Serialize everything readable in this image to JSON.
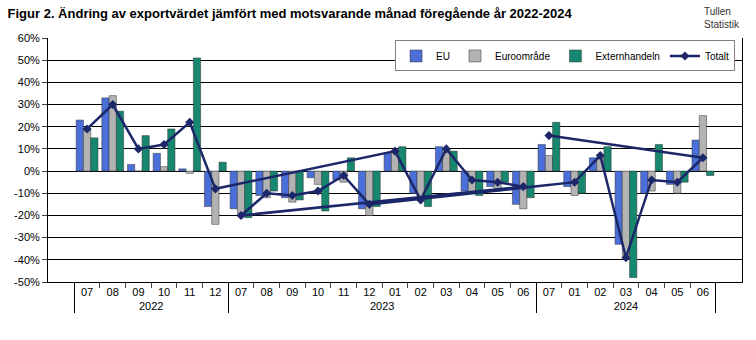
{
  "chart_data": {
    "type": "bar",
    "title": "Figur 2. Ändring av exportvärdet jämfört med motsvarande månad föregående år 2022-2024",
    "annotations": [
      "Tullen",
      "Statistik"
    ],
    "categories": [
      [
        "2022",
        "07"
      ],
      [
        "2022",
        "08"
      ],
      [
        "2022",
        "09"
      ],
      [
        "2022",
        "10"
      ],
      [
        "2022",
        "11"
      ],
      [
        "2022",
        "12"
      ],
      [
        "2023",
        "01"
      ],
      [
        "2023",
        "02"
      ],
      [
        "2023",
        "03"
      ],
      [
        "2023",
        "04"
      ],
      [
        "2023",
        "05"
      ],
      [
        "2023",
        "06"
      ],
      [
        "2023",
        "07"
      ],
      [
        "2023",
        "08"
      ],
      [
        "2023",
        "09"
      ],
      [
        "2023",
        "10"
      ],
      [
        "2023",
        "11"
      ],
      [
        "2023",
        "12"
      ],
      [
        "2024",
        "01"
      ],
      [
        "2024",
        "02"
      ],
      [
        "2024",
        "03"
      ],
      [
        "2024",
        "04"
      ],
      [
        "2024",
        "05"
      ],
      [
        "2024",
        "06"
      ],
      [
        "2024",
        "07"
      ]
    ],
    "series": [
      {
        "name": "EU",
        "color": "#4b6fd9",
        "values": [
          23,
          33,
          3,
          8,
          1,
          -16,
          8,
          -10,
          11,
          -9,
          -7,
          -15,
          -17,
          -11,
          -12,
          -3,
          -4,
          -17,
          -7,
          6,
          -33,
          -10,
          -6,
          14,
          12
        ]
      },
      {
        "name": "Euroområde",
        "color": "#b3b3b3",
        "values": [
          19,
          34,
          0,
          2,
          -1,
          -24,
          9,
          -13,
          10,
          -10,
          -9,
          -17,
          -20,
          -12,
          -14,
          -6,
          -5,
          -20,
          -11,
          6,
          -38,
          -9,
          -10,
          25,
          7
        ]
      },
      {
        "name": "Externhandeln",
        "color": "#17876f",
        "values": [
          15,
          27,
          16,
          19,
          51,
          4,
          11,
          -16,
          9,
          -11,
          -5,
          -12,
          -21,
          -9,
          -13,
          -18,
          6,
          -16,
          -10,
          11,
          -48,
          12,
          -5,
          -2,
          22
        ]
      },
      {
        "name": "Totalt",
        "type": "line",
        "color": "#1c2769",
        "marker": "diamond",
        "values": [
          19,
          30,
          10,
          12,
          22,
          -8,
          9,
          -13,
          10,
          -4,
          -5,
          -7,
          -20,
          -10,
          -11,
          -9,
          -2,
          -15,
          -5,
          7,
          -39,
          -4,
          -5,
          6,
          16
        ]
      }
    ],
    "ylim": [
      -50,
      60
    ],
    "yticks": [
      {
        "value": -50,
        "label": "-50%"
      },
      {
        "value": -40,
        "label": "-40%"
      },
      {
        "value": -30,
        "label": "-30%"
      },
      {
        "value": -20,
        "label": "-20%"
      },
      {
        "value": -10,
        "label": "-10%"
      },
      {
        "value": 0,
        "label": "0%"
      },
      {
        "value": 10,
        "label": "10%"
      },
      {
        "value": 20,
        "label": "20%"
      },
      {
        "value": 30,
        "label": "30%"
      },
      {
        "value": 40,
        "label": "40%"
      },
      {
        "value": 50,
        "label": "50%"
      },
      {
        "value": 60,
        "label": "60%"
      }
    ],
    "grid": true,
    "legend": "upper right"
  }
}
